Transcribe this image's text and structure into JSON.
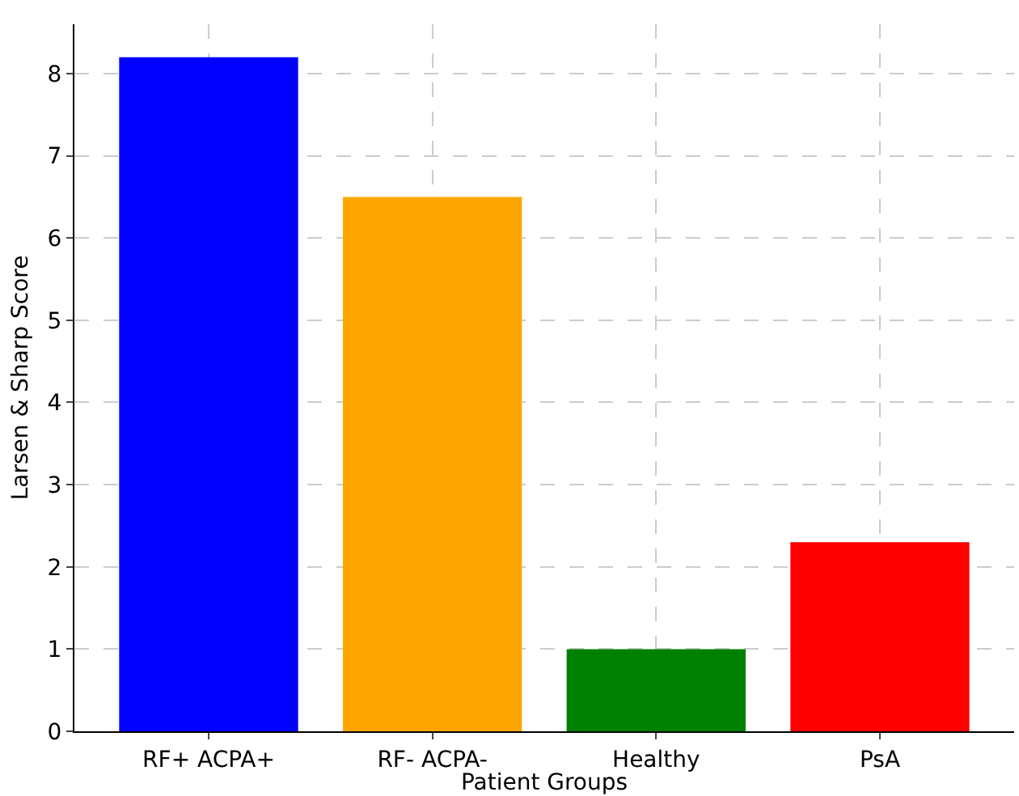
{
  "chart_data": {
    "type": "bar",
    "xlabel": "Patient Groups",
    "ylabel": "Larsen & Sharp Score",
    "categories": [
      "RF+ ACPA+",
      "RF- ACPA-",
      "Healthy",
      "PsA"
    ],
    "values": [
      8.2,
      6.5,
      1.0,
      2.3
    ],
    "colors": [
      "#0000ff",
      "#ffa500",
      "#008000",
      "#ff0000"
    ],
    "ylim": [
      0,
      8.6
    ],
    "yticks": [
      0,
      1,
      2,
      3,
      4,
      5,
      6,
      7,
      8
    ],
    "grid": true
  }
}
